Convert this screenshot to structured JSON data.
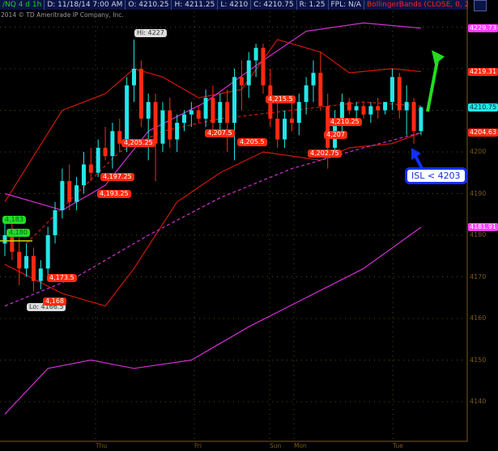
{
  "header": {
    "symbol": "/NQ 4 d 1h",
    "date": "D: 11/18/14 7:00 AM",
    "open": "O: 4210.25",
    "high": "H: 4211.25",
    "low": "L: 4210",
    "close": "C: 4210.75",
    "range": "R: 1.25",
    "fpl": "FPL: N/A",
    "study": "BollingerBands (CLOSE, 0, 25, -2.0, 2.0,..."
  },
  "copyright": "2014 © TD Ameritrade IP Company, Inc.",
  "colors": {
    "up": "#22e8e8",
    "down": "#ff2a10",
    "band_red": "#d01808",
    "band_magenta": "#d030d0",
    "axis": "#7a5a20",
    "annotation_green": "#22dd22",
    "annotation_blue": "#1030ff"
  },
  "chart_data": {
    "type": "candlestick",
    "ylim": [
      4135,
      4232
    ],
    "y_ticks": [
      4140,
      4150,
      4160,
      4170,
      4180,
      4190,
      4200
    ],
    "x_labels": [
      "Thu",
      "Fri",
      "Sun",
      "Mon",
      "Tue"
    ],
    "price_tags": [
      {
        "text": "4229.73",
        "color": "#ff40ff"
      },
      {
        "text": "4219.31",
        "color": "#ff2a10"
      },
      {
        "text": "4210.75",
        "color": "#22e8e8"
      },
      {
        "text": "4204.63",
        "color": "#ff2a10"
      },
      {
        "text": "4181.91",
        "color": "#ff40ff"
      }
    ],
    "candles": [
      [
        4178,
        4183,
        4175,
        4180
      ],
      [
        4180,
        4184,
        4174,
        4176
      ],
      [
        4176,
        4180,
        4168,
        4172
      ],
      [
        4172,
        4178,
        4170,
        4175
      ],
      [
        4175,
        4177,
        4166.5,
        4169
      ],
      [
        4169,
        4174,
        4167,
        4172
      ],
      [
        4172,
        4182,
        4170,
        4180
      ],
      [
        4180,
        4188,
        4178,
        4186
      ],
      [
        4186,
        4196,
        4184,
        4193
      ],
      [
        4193,
        4197,
        4186,
        4188
      ],
      [
        4188,
        4194,
        4186,
        4192
      ],
      [
        4192,
        4200,
        4190,
        4197
      ],
      [
        4197,
        4201,
        4193,
        4195
      ],
      [
        4195,
        4203,
        4194,
        4201
      ],
      [
        4201,
        4206,
        4198,
        4199
      ],
      [
        4199,
        4207,
        4196,
        4205
      ],
      [
        4205,
        4208,
        4200,
        4202
      ],
      [
        4202,
        4218,
        4200,
        4216
      ],
      [
        4216,
        4227,
        4212,
        4220
      ],
      [
        4220,
        4222,
        4206,
        4208
      ],
      [
        4208,
        4214,
        4198,
        4212
      ],
      [
        4212,
        4214,
        4193,
        4202
      ],
      [
        4202,
        4212,
        4200,
        4210
      ],
      [
        4210,
        4213,
        4201,
        4203
      ],
      [
        4203,
        4209,
        4200,
        4207
      ],
      [
        4207,
        4210,
        4205,
        4209
      ],
      [
        4209,
        4212,
        4206,
        4210
      ],
      [
        4210,
        4211,
        4207,
        4208
      ],
      [
        4208,
        4215,
        4206,
        4213
      ],
      [
        4213,
        4216,
        4205,
        4207
      ],
      [
        4207,
        4214,
        4204,
        4212
      ],
      [
        4212,
        4215,
        4200,
        4207
      ],
      [
        4207,
        4220,
        4198,
        4218
      ],
      [
        4218,
        4222,
        4210,
        4216
      ],
      [
        4216,
        4224,
        4213,
        4222
      ],
      [
        4222,
        4226,
        4218,
        4225
      ],
      [
        4225,
        4226,
        4214,
        4216
      ],
      [
        4216,
        4220,
        4206,
        4208
      ],
      [
        4208,
        4212,
        4201,
        4203
      ],
      [
        4203,
        4210,
        4201,
        4208
      ],
      [
        4208,
        4213,
        4205,
        4207
      ],
      [
        4207,
        4214,
        4204,
        4212
      ],
      [
        4212,
        4218,
        4209,
        4216
      ],
      [
        4216,
        4222,
        4212,
        4219
      ],
      [
        4219,
        4224,
        4210,
        4211
      ],
      [
        4211,
        4214,
        4196,
        4201
      ],
      [
        4201,
        4210,
        4199,
        4208
      ],
      [
        4208,
        4214,
        4205,
        4212
      ],
      [
        4212,
        4213,
        4209,
        4210
      ],
      [
        4210,
        4212,
        4208,
        4211
      ],
      [
        4211,
        4212,
        4208,
        4209
      ],
      [
        4209,
        4212,
        4207,
        4211
      ],
      [
        4211,
        4213,
        4208,
        4210
      ],
      [
        4210,
        4212,
        4209,
        4212
      ],
      [
        4212,
        4220,
        4210,
        4218
      ],
      [
        4218,
        4219,
        4208,
        4210
      ],
      [
        4210,
        4216,
        4204,
        4212
      ],
      [
        4212,
        4213,
        4202,
        4205
      ],
      [
        4205,
        4211,
        4204,
        4210.75
      ]
    ],
    "bands": [
      {
        "id": "red-upper",
        "color": "#d01808",
        "dashed": false,
        "points": [
          [
            0,
            4188
          ],
          [
            8,
            4210
          ],
          [
            14,
            4214
          ],
          [
            18,
            4220
          ],
          [
            22,
            4218
          ],
          [
            27,
            4213
          ],
          [
            33,
            4215
          ],
          [
            38,
            4227
          ],
          [
            44,
            4224
          ],
          [
            48,
            4219
          ],
          [
            54,
            4220
          ],
          [
            58,
            4219.31
          ]
        ]
      },
      {
        "id": "red-middle",
        "color": "#d01808",
        "dashed": true,
        "points": [
          [
            3,
            4178
          ],
          [
            10,
            4190
          ],
          [
            16,
            4200
          ],
          [
            22,
            4205
          ],
          [
            30,
            4208
          ],
          [
            40,
            4210
          ],
          [
            50,
            4212
          ],
          [
            58,
            4211
          ]
        ]
      },
      {
        "id": "red-lower",
        "color": "#d01808",
        "dashed": false,
        "points": [
          [
            0,
            4173
          ],
          [
            8,
            4166
          ],
          [
            14,
            4163
          ],
          [
            18,
            4172
          ],
          [
            24,
            4188
          ],
          [
            30,
            4195
          ],
          [
            36,
            4200
          ],
          [
            44,
            4198
          ],
          [
            48,
            4201
          ],
          [
            54,
            4202
          ],
          [
            58,
            4204.63
          ]
        ]
      },
      {
        "id": "magenta-upper",
        "color": "#d030d0",
        "dashed": false,
        "points": [
          [
            0,
            4190
          ],
          [
            8,
            4186
          ],
          [
            14,
            4192
          ],
          [
            20,
            4205
          ],
          [
            28,
            4212
          ],
          [
            36,
            4222
          ],
          [
            42,
            4229
          ],
          [
            50,
            4231
          ],
          [
            58,
            4229.73
          ]
        ]
      },
      {
        "id": "magenta-middle",
        "color": "#d030d0",
        "dashed": true,
        "points": [
          [
            0,
            4163
          ],
          [
            10,
            4170
          ],
          [
            20,
            4180
          ],
          [
            30,
            4189
          ],
          [
            40,
            4196
          ],
          [
            50,
            4201
          ],
          [
            58,
            4204.63
          ]
        ]
      },
      {
        "id": "magenta-lower",
        "color": "#d030d0",
        "dashed": false,
        "points": [
          [
            0,
            4137
          ],
          [
            6,
            4148
          ],
          [
            12,
            4150
          ],
          [
            18,
            4148
          ],
          [
            26,
            4150
          ],
          [
            34,
            4158
          ],
          [
            42,
            4165
          ],
          [
            50,
            4172
          ],
          [
            58,
            4181.91
          ]
        ]
      }
    ],
    "annotations": {
      "hi": "Hi: 4227",
      "lo": "Lo: 4166.5",
      "green": [
        "4,183",
        "4,180"
      ],
      "red": [
        "4,173.5",
        "4,168",
        "4,197.25",
        "4,193.25",
        "4,205.25",
        "4,207.5",
        "4,205.5",
        "4,215.5",
        "4,210.25",
        "4,207",
        "4,202.75"
      ],
      "note": "ISL < 4203"
    }
  }
}
